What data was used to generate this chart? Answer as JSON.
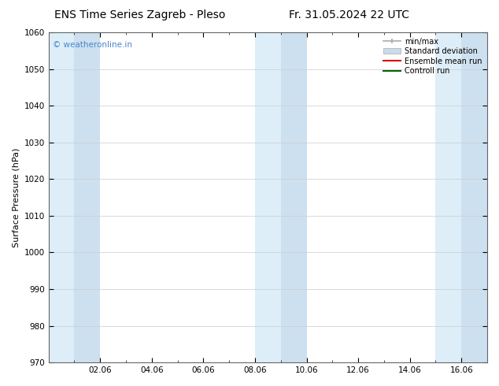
{
  "title_left": "ENS Time Series Zagreb - Pleso",
  "title_right": "Fr. 31.05.2024 22 UTC",
  "ylabel": "Surface Pressure (hPa)",
  "ylim": [
    970,
    1060
  ],
  "yticks": [
    970,
    980,
    990,
    1000,
    1010,
    1020,
    1030,
    1040,
    1050,
    1060
  ],
  "xtick_labels": [
    "02.06",
    "04.06",
    "06.06",
    "08.06",
    "10.06",
    "12.06",
    "14.06",
    "16.06"
  ],
  "xtick_pos": [
    2,
    4,
    6,
    8,
    10,
    12,
    14,
    16
  ],
  "xlim": [
    0,
    17
  ],
  "watermark": "© weatheronline.in",
  "watermark_color": "#4488cc",
  "bg_color": "#ffffff",
  "plot_bg_color": "#ffffff",
  "shade_color_light": "#ddeef8",
  "shade_color_mid": "#cde0ef",
  "legend_labels": [
    "min/max",
    "Standard deviation",
    "Ensemble mean run",
    "Controll run"
  ],
  "legend_minmax_color": "#aaaaaa",
  "legend_std_color": "#c8dce8",
  "legend_ensemble_color": "#dd0000",
  "legend_control_color": "#006600",
  "shaded_bands": [
    [
      0,
      1,
      "light"
    ],
    [
      1,
      2,
      "mid"
    ],
    [
      8,
      9,
      "light"
    ],
    [
      9,
      10,
      "mid"
    ],
    [
      15,
      16,
      "light"
    ],
    [
      16,
      17,
      "mid"
    ]
  ]
}
